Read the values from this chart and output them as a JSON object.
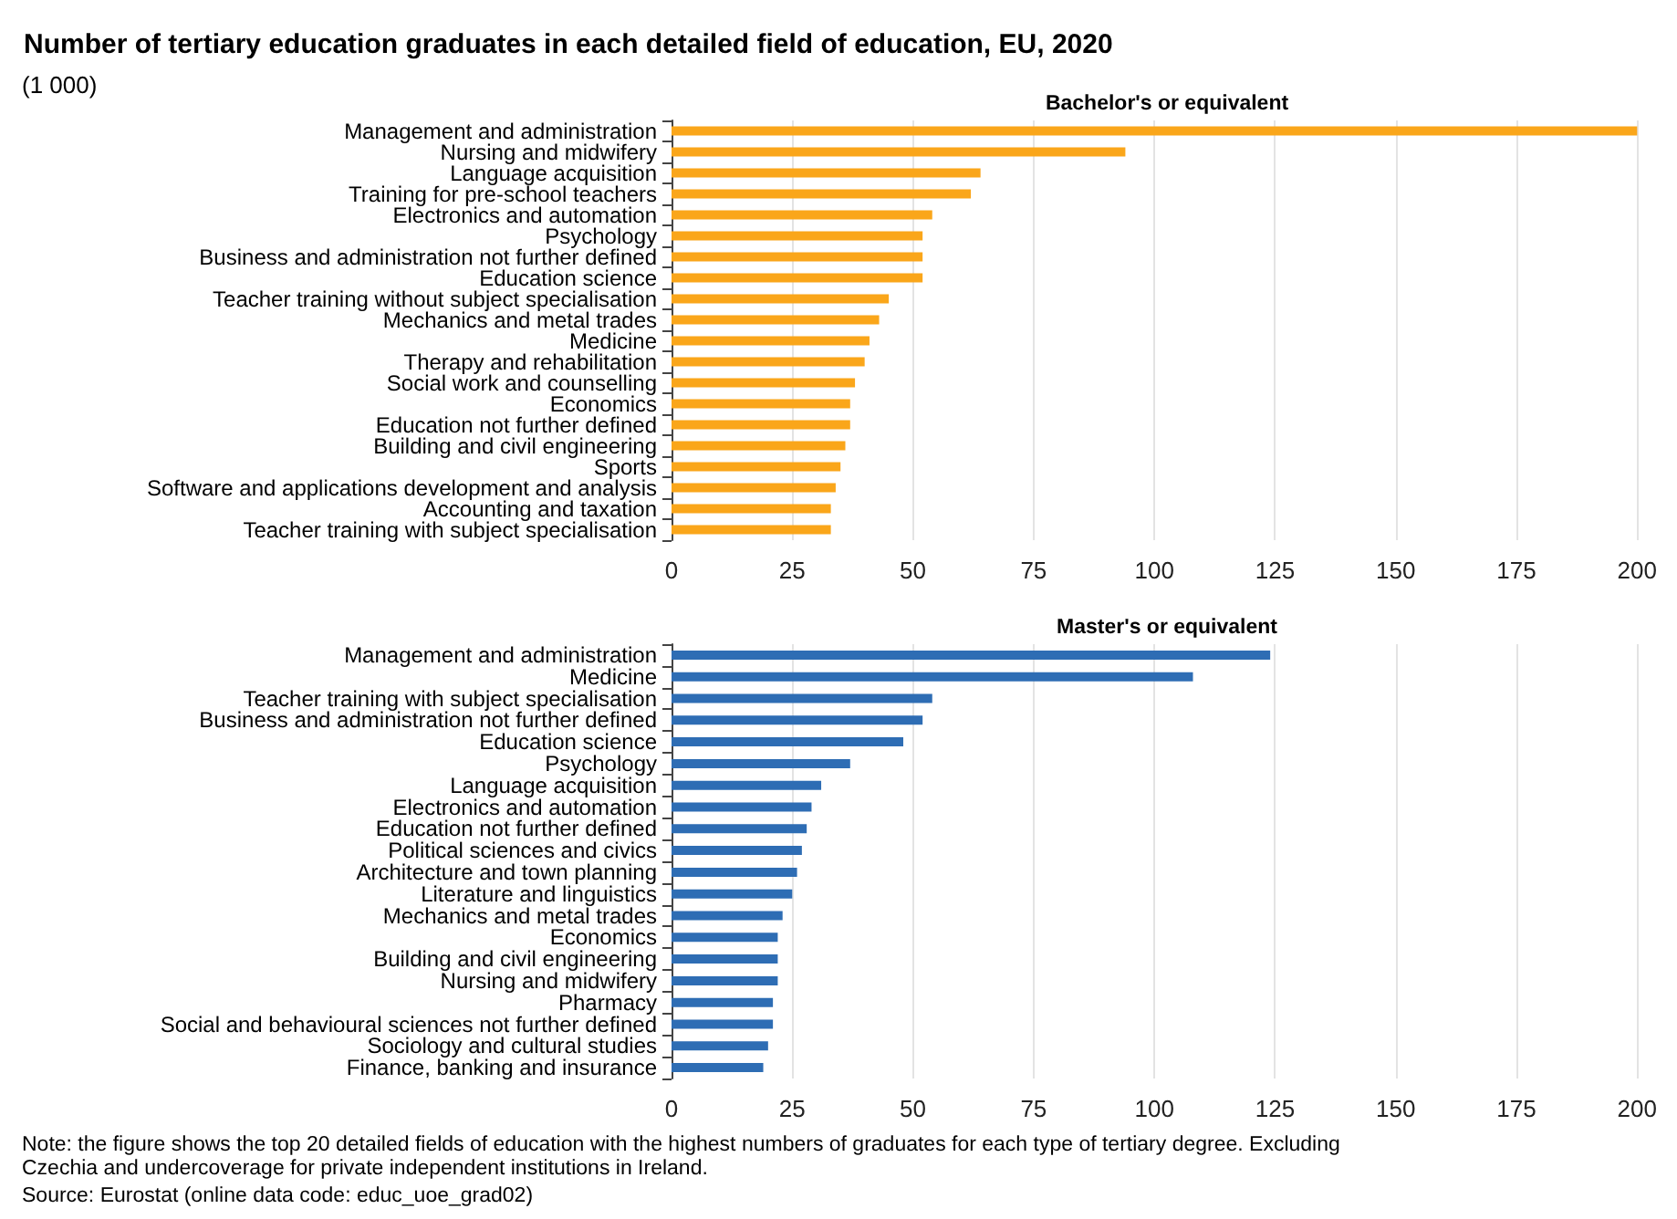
{
  "chart_data": [
    {
      "type": "bar",
      "orientation": "horizontal",
      "title": "Number of tertiary education graduates in each detailed field of education, EU, 2020",
      "subtitle": "Bachelor's or equivalent",
      "annotations": [
        "(1 000)"
      ],
      "categories": [
        "Management and administration",
        "Nursing and midwifery",
        "Language acquisition",
        "Training for pre-school teachers",
        "Electronics and automation",
        "Psychology",
        "Business and administration not further defined",
        "Education science",
        "Teacher training without subject specialisation",
        "Mechanics and metal trades",
        "Medicine",
        "Therapy and rehabilitation",
        "Social work and counselling",
        "Economics",
        "Education not further defined",
        "Building and civil engineering",
        "Sports",
        "Software and applications development and analysis",
        "Accounting and taxation",
        "Teacher training with subject specialisation"
      ],
      "series": [
        {
          "color": "#faa61a",
          "values": [
            200,
            94,
            64,
            62,
            54,
            52,
            52,
            52,
            45,
            43,
            41,
            40,
            38,
            37,
            37,
            36,
            35,
            34,
            33,
            33
          ]
        }
      ],
      "xlim": [
        0,
        200
      ],
      "xticks": [
        0,
        25,
        50,
        75,
        100,
        125,
        150,
        175,
        200
      ],
      "grid": "x"
    },
    {
      "type": "bar",
      "orientation": "horizontal",
      "subtitle": "Master's or equivalent",
      "annotations": [
        "Note: the figure shows the top 20 detailed fields of education with the highest numbers of graduates for each type of tertiary degree. Excluding Czechia and undercoverage for private independent institutions in Ireland.",
        "Source: Eurostat (online data code: educ_uoe_grad02)"
      ],
      "categories": [
        "Management and administration",
        "Medicine",
        "Teacher training with subject specialisation",
        "Business and administration not further defined",
        "Education science",
        "Psychology",
        "Language acquisition",
        "Electronics and automation",
        "Education not further defined",
        "Political sciences and civics",
        "Architecture and town planning",
        "Literature and linguistics",
        "Mechanics and metal trades",
        "Economics",
        "Building and civil engineering",
        "Nursing and midwifery",
        "Pharmacy",
        "Social and behavioural sciences not further defined",
        "Sociology and cultural studies",
        "Finance, banking and insurance"
      ],
      "series": [
        {
          "color": "#2e6db4",
          "values": [
            124,
            108,
            54,
            52,
            48,
            37,
            31,
            29,
            28,
            27,
            26,
            25,
            23,
            22,
            22,
            22,
            21,
            21,
            20,
            19
          ]
        }
      ],
      "xlim": [
        0,
        200
      ],
      "xticks": [
        0,
        25,
        50,
        75,
        100,
        125,
        150,
        175,
        200
      ],
      "grid": "x"
    }
  ]
}
